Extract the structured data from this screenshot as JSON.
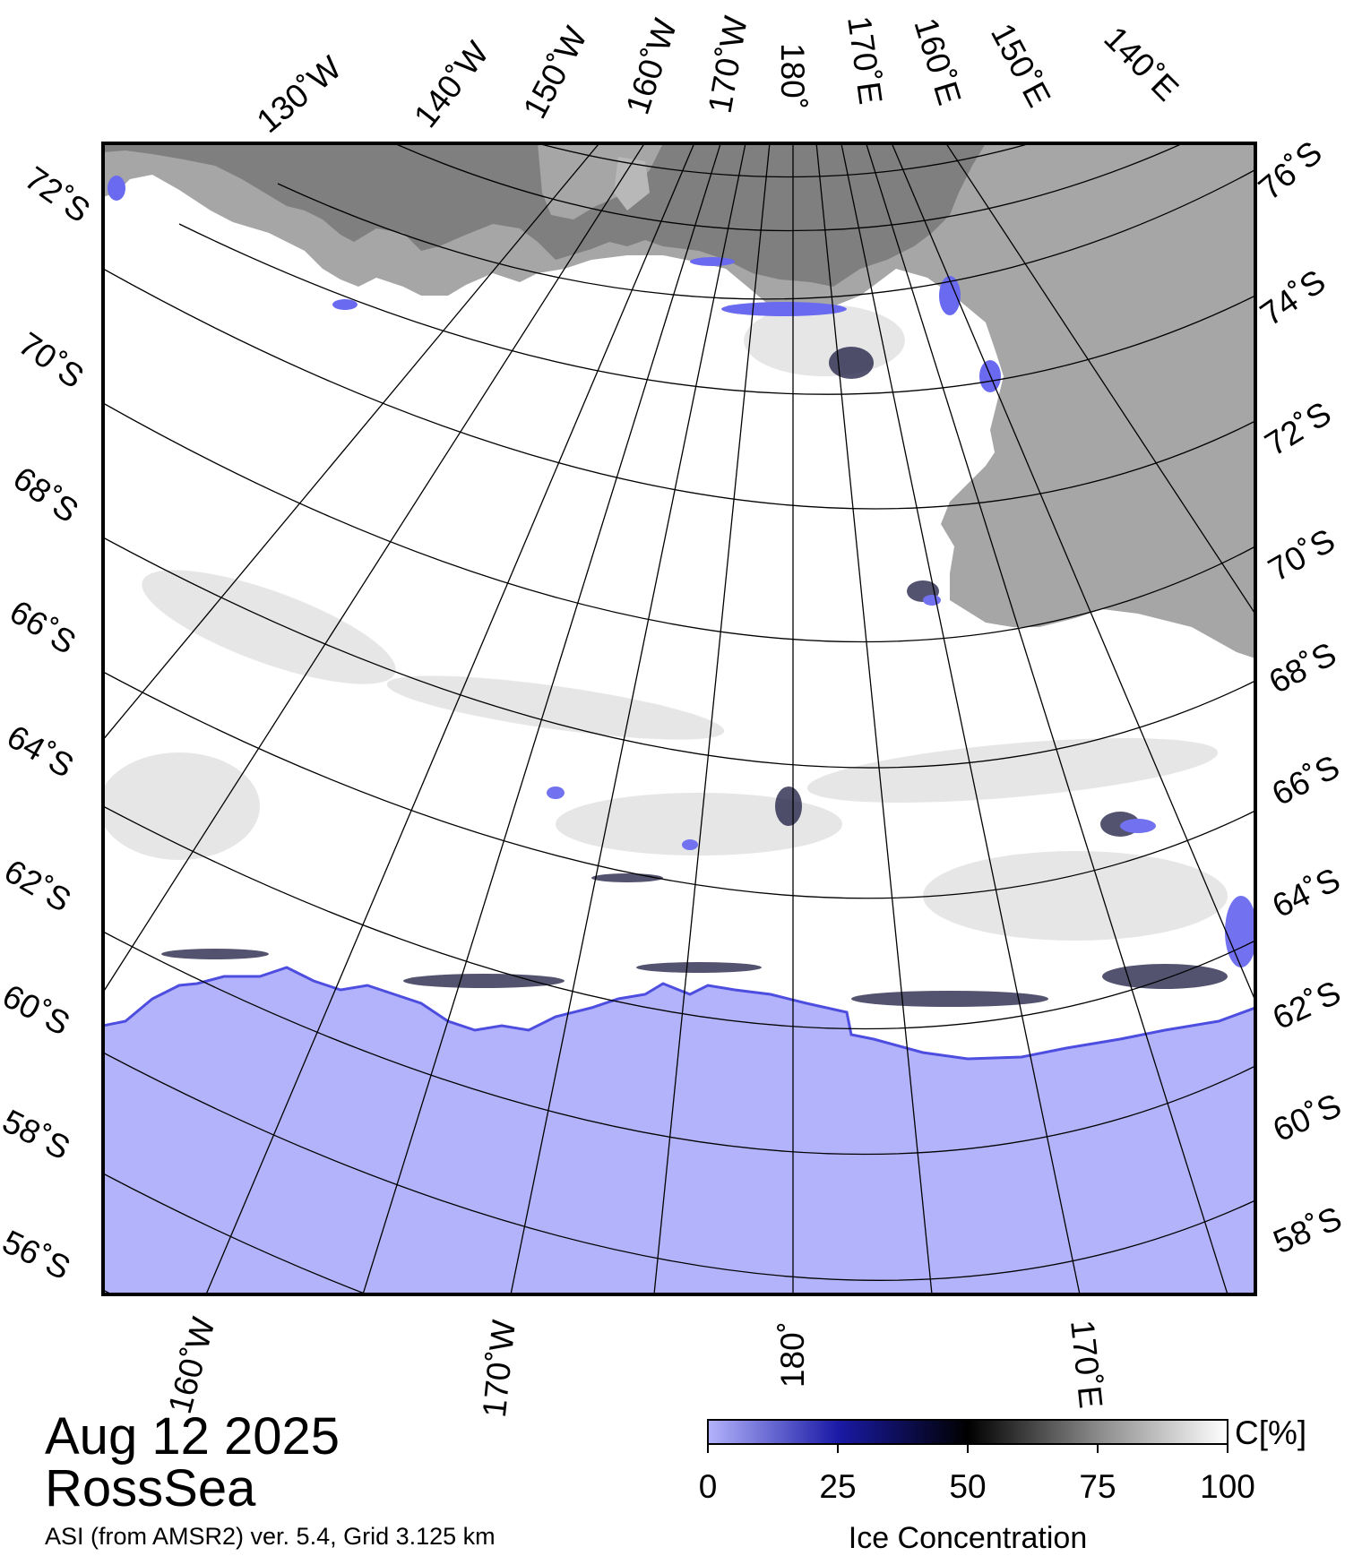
{
  "map": {
    "title_date": "Aug 12 2025",
    "title_region": "RossSea",
    "subtitle": "ASI (from AMSR2) ver. 5.4,  Grid 3.125 km",
    "colors": {
      "open_water": "#b3b3fb",
      "land": "#a6a6a6",
      "ice_shelf": "#7f7f7f",
      "ice": "#ffffff",
      "frame": "#000000",
      "coast_edge": "#4d4de0"
    },
    "graticule": {
      "top_lon_labels": [
        "130˚W",
        "140˚W",
        "150˚W",
        "160˚W",
        "170˚W",
        "180˚",
        "170˚E",
        "160˚E",
        "150˚E",
        "140˚E"
      ],
      "bottom_lon_labels": [
        "160˚W",
        "170˚W",
        "180˚",
        "170˚E"
      ],
      "left_lat_labels": [
        "72˚S",
        "70˚S",
        "68˚S",
        "66˚S",
        "64˚S",
        "62˚S",
        "60˚S",
        "58˚S",
        "56˚S"
      ],
      "right_lat_labels": [
        "76˚S",
        "74˚S",
        "72˚S",
        "70˚S",
        "68˚S",
        "66˚S",
        "64˚S",
        "62˚S",
        "60˚S",
        "58˚S"
      ]
    }
  },
  "colorbar": {
    "ticks": [
      "0",
      "25",
      "50",
      "75",
      "100"
    ],
    "unit": "C[%]",
    "label": "Ice Concentration"
  }
}
